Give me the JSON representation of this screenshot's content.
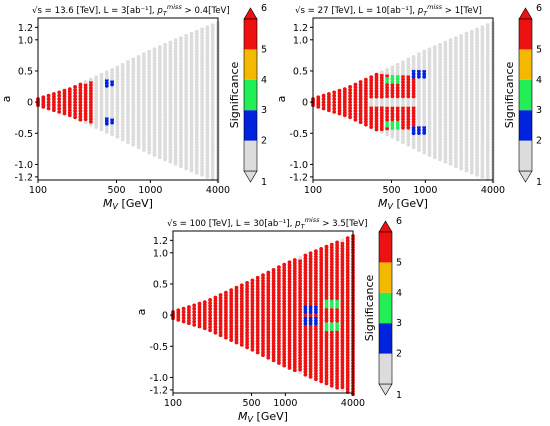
{
  "chart_data": [
    {
      "type": "scatter",
      "title": "√s = 13.6 [TeV], L = 3[ab⁻¹], p_T^miss > 0.4[TeV]",
      "title_parts": {
        "sqrt_s": "√s = 13.6 [TeV], ",
        "lumi": "L = 3[ab⁻¹], ",
        "ptmiss_prefix": "p",
        "ptmiss_sub": "T",
        "ptmiss_sup": "miss",
        "ptmiss_cut": " > 0.4[TeV]"
      },
      "xlabel": "M_V [GeV]",
      "ylabel": "a",
      "xscale": "log",
      "xlim": [
        100,
        4000
      ],
      "ylim": [
        -1.25,
        1.35
      ],
      "xticks": [
        100,
        500,
        1000,
        4000
      ],
      "xtick_labels": [
        "100",
        "500",
        "1000",
        "4000"
      ],
      "yticks": [
        -1.2,
        -1.0,
        -0.5,
        0,
        0.5,
        1.0,
        1.2
      ],
      "ytick_labels": [
        "-1.2",
        "-1.0",
        "-0.5",
        "0",
        "0.5",
        "1.0",
        "1.2"
      ],
      "region_edge": {
        "x": [
          100,
          200,
          500,
          1000,
          2000,
          4000
        ],
        "a": [
          0.05,
          0.22,
          0.55,
          0.82,
          1.05,
          1.27
        ]
      },
      "significance_regions": [
        {
          "level": "≥5",
          "x_max": 300,
          "a_max": 0.32
        },
        {
          "level": "2-3",
          "x_max": 500,
          "a_max": 0.33
        }
      ],
      "grid": false,
      "legend": "none"
    },
    {
      "type": "scatter",
      "title": "√s = 27 [TeV], L = 10[ab⁻¹], p_T^miss > 1[TeV]",
      "title_parts": {
        "sqrt_s": "√s = 27 [TeV], ",
        "lumi": "L = 10[ab⁻¹], ",
        "ptmiss_prefix": "p",
        "ptmiss_sub": "T",
        "ptmiss_sup": "miss",
        "ptmiss_cut": " > 1[TeV]"
      },
      "xlabel": "M_V [GeV]",
      "ylabel": "a",
      "xscale": "log",
      "xlim": [
        100,
        4000
      ],
      "ylim": [
        -1.25,
        1.35
      ],
      "xticks": [
        100,
        500,
        1000,
        4000
      ],
      "xtick_labels": [
        "100",
        "500",
        "1000",
        "4000"
      ],
      "yticks": [
        -1.2,
        -1.0,
        -0.5,
        0,
        0.5,
        1.0,
        1.2
      ],
      "ytick_labels": [
        "-1.2",
        "-1.0",
        "-0.5",
        "0",
        "0.5",
        "1.0",
        "1.2"
      ],
      "region_edge": {
        "x": [
          100,
          200,
          500,
          1000,
          2000,
          4000
        ],
        "a": [
          0.05,
          0.22,
          0.55,
          0.82,
          1.05,
          1.27
        ]
      },
      "significance_regions": [
        {
          "level": "≥5",
          "x_max": 800,
          "a_max": 0.45
        },
        {
          "level": "3-4",
          "x_max": 600,
          "a_max": 0.4
        },
        {
          "level": "2-3",
          "x_max": 1000,
          "a_max": 0.5
        }
      ],
      "grid": false,
      "legend": "none"
    },
    {
      "type": "scatter",
      "title": "√s = 100 [TeV], L = 30[ab⁻¹], p_T^miss > 3.5[TeV]",
      "title_parts": {
        "sqrt_s": "√s = 100 [TeV], ",
        "lumi": "L = 30[ab⁻¹], ",
        "ptmiss_prefix": "p",
        "ptmiss_sub": "T",
        "ptmiss_sup": "miss",
        "ptmiss_cut": " > 3.5[TeV]"
      },
      "xlabel": "M_V [GeV]",
      "ylabel": "a",
      "xscale": "log",
      "xlim": [
        100,
        4000
      ],
      "ylim": [
        -1.25,
        1.35
      ],
      "xticks": [
        100,
        500,
        1000,
        4000
      ],
      "xtick_labels": [
        "100",
        "500",
        "1000",
        "4000"
      ],
      "yticks": [
        -1.2,
        -1.0,
        -0.5,
        0,
        0.5,
        1.0,
        1.2
      ],
      "ytick_labels": [
        "-1.2",
        "-1.0",
        "-0.5",
        "0",
        "0.5",
        "1.0",
        "1.2"
      ],
      "region_edge": {
        "x": [
          100,
          200,
          500,
          1000,
          2000,
          4000
        ],
        "a": [
          0.05,
          0.22,
          0.55,
          0.82,
          1.05,
          1.27
        ]
      },
      "significance_regions": [
        {
          "level": "≥5",
          "x_max": 4000,
          "a_max": 1.27
        },
        {
          "level": "3-4",
          "x_max": 3000,
          "a_max": 0.2
        },
        {
          "level": "2-3",
          "x_max": 2000,
          "a_max": 0.1
        }
      ],
      "grid": false,
      "legend": "none"
    }
  ],
  "colorbar": {
    "label": "Significance",
    "ticks": [
      "1",
      "2",
      "3",
      "4",
      "5",
      "6"
    ],
    "bins": [
      {
        "from": 1,
        "to": 2,
        "color": "#dcdcdc"
      },
      {
        "from": 2,
        "to": 3,
        "color": "#0022dd"
      },
      {
        "from": 3,
        "to": 4,
        "color": "#22ee55"
      },
      {
        "from": 4,
        "to": 5,
        "color": "#f5b800"
      },
      {
        "from": 5,
        "to": 6,
        "color": "#ee1111"
      }
    ],
    "extend": "both",
    "under_color": "#dcdcdc",
    "over_color": "#ee1111"
  }
}
